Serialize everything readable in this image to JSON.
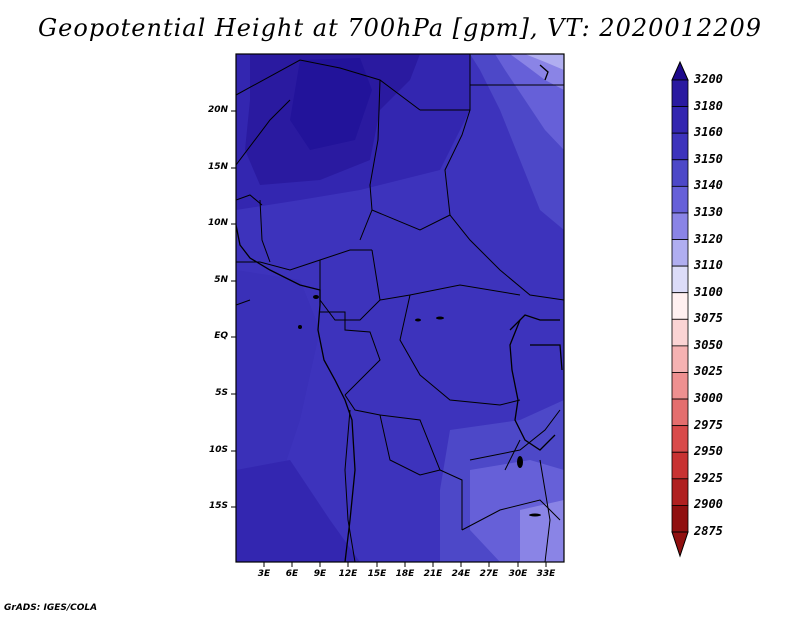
{
  "title": "Geopotential Height at 700hPa [gpm], VT: 2020012209",
  "credit": "GrADS: IGES/COLA",
  "map": {
    "lat_labels": [
      "20N",
      "15N",
      "10N",
      "5N",
      "EQ",
      "5S",
      "10S",
      "15S"
    ],
    "lat_values": [
      20,
      15,
      10,
      5,
      0,
      -5,
      -10,
      -15
    ],
    "lon_labels": [
      "3E",
      "6E",
      "9E",
      "12E",
      "15E",
      "18E",
      "21E",
      "24E",
      "27E",
      "30E",
      "33E"
    ],
    "lon_values": [
      3,
      6,
      9,
      12,
      15,
      18,
      21,
      24,
      27,
      30,
      33
    ],
    "lon_range": [
      0,
      35
    ],
    "lat_range": [
      -20,
      25
    ]
  },
  "colorbar": {
    "levels": [
      "3200",
      "3180",
      "3160",
      "3150",
      "3140",
      "3130",
      "3120",
      "3110",
      "3100",
      "3075",
      "3050",
      "3025",
      "3000",
      "2975",
      "2950",
      "2925",
      "2900",
      "2875"
    ],
    "colors": [
      "#1e0a8c",
      "#2a1aa0",
      "#3326b0",
      "#3d33bc",
      "#4d48c8",
      "#6660d8",
      "#8a84e6",
      "#b0aef0",
      "#dcdcf8",
      "#fff0f0",
      "#fbd4d4",
      "#f5b2b2",
      "#ee9090",
      "#e46e6e",
      "#d84a4a",
      "#c83232",
      "#b02020",
      "#901010"
    ],
    "top_arrow_color": "#1e0a8c",
    "bottom_arrow_color": "#901010"
  }
}
